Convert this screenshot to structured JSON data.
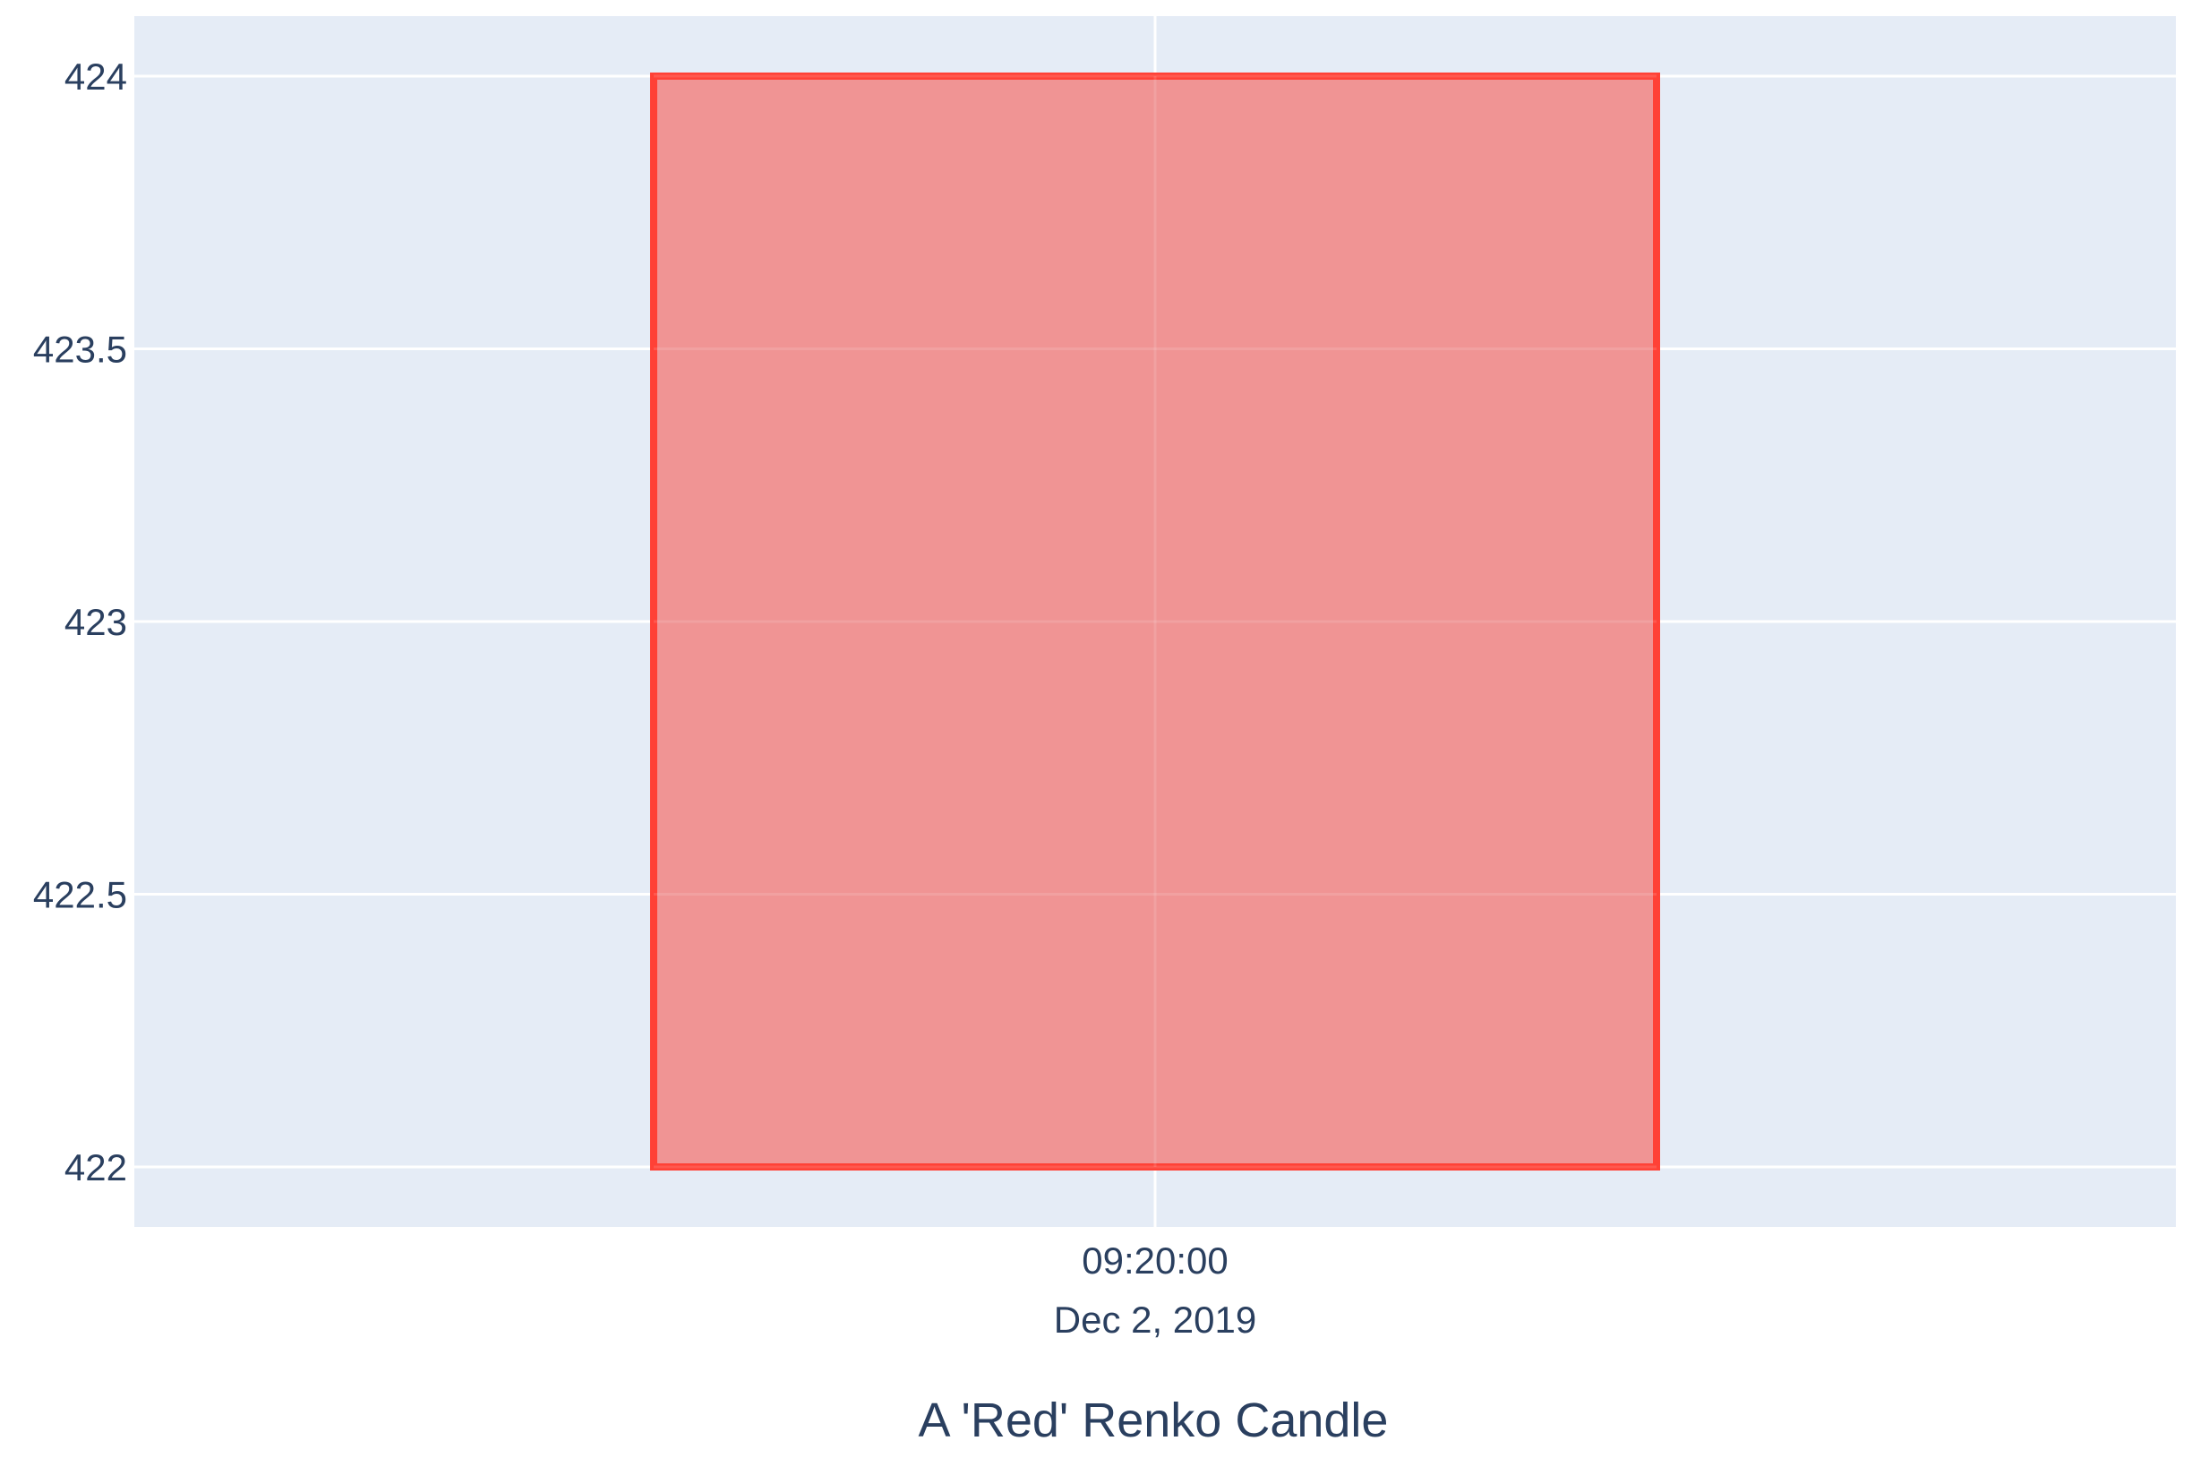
{
  "chart_data": {
    "type": "candlestick",
    "title": "",
    "xlabel": "A 'Red' Renko Candle",
    "ylabel": "",
    "x_ticks": [
      {
        "value": "2019-12-02 09:20:00",
        "line1": "09:20:00",
        "line2": "Dec 2, 2019"
      }
    ],
    "y_ticks": [
      422,
      422.5,
      423,
      423.5,
      424
    ],
    "y_tick_labels": [
      "422",
      "422.5",
      "423",
      "423.5",
      "424"
    ],
    "ylim": [
      421.89,
      424.11
    ],
    "grid": true,
    "legend": "none",
    "candles": [
      {
        "x": "2019-12-02 09:20:00",
        "open": 424,
        "high": 424,
        "low": 422,
        "close": 422,
        "direction": "down"
      }
    ]
  },
  "colors": {
    "plot_background": "#e5ecf6",
    "grid": "#ffffff",
    "text": "#2a3f5f",
    "candle_fill": "#f09494",
    "candle_line": "#ff4136"
  }
}
